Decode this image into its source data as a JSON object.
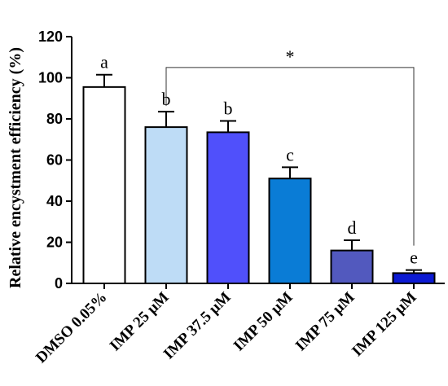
{
  "chart_data": {
    "type": "bar",
    "ylabel": "Relative encystment efficiency (%)",
    "xlabel": "",
    "ylim": [
      0,
      120
    ],
    "yticks": [
      0,
      20,
      40,
      60,
      80,
      100,
      120
    ],
    "grid": false,
    "categories": [
      "DMSO 0.05%",
      "IMP 25 μM",
      "IMP 37.5 μM",
      "IMP 50 μM",
      "IMP 75 μM",
      "IMP 125 μM"
    ],
    "values": [
      95.5,
      76,
      73.5,
      51,
      16,
      5
    ],
    "errors": [
      6,
      7.5,
      5.5,
      5.5,
      5,
      1.5
    ],
    "significance_letters": [
      "a",
      "b",
      "b",
      "c",
      "d",
      "e"
    ],
    "colors": [
      "#ffffff",
      "#bedcf6",
      "#5050fb",
      "#0a7cd6",
      "#5259be",
      "#0c1ad3"
    ],
    "annotation": {
      "text": "*",
      "from_category": "IMP 25 μM",
      "to_category": "IMP 125 μM",
      "bracket_y": 105
    }
  }
}
